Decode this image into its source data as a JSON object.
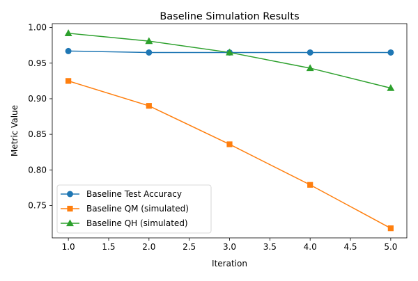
{
  "chart_data": {
    "type": "line",
    "title": "Baseline Simulation Results",
    "xlabel": "Iteration",
    "ylabel": "Metric Value",
    "xlim": [
      0.8,
      5.2
    ],
    "ylim": [
      0.7045,
      1.0055
    ],
    "xticks": [
      1.0,
      1.5,
      2.0,
      2.5,
      3.0,
      3.5,
      4.0,
      4.5,
      5.0
    ],
    "xtick_labels": [
      "1.0",
      "1.5",
      "2.0",
      "2.5",
      "3.0",
      "3.5",
      "4.0",
      "4.5",
      "5.0"
    ],
    "yticks": [
      0.75,
      0.8,
      0.85,
      0.9,
      0.95,
      1.0
    ],
    "ytick_labels": [
      "0.75",
      "0.80",
      "0.85",
      "0.90",
      "0.95",
      "1.00"
    ],
    "grid": false,
    "legend_position": "lower-left",
    "x": [
      1,
      2,
      3,
      4,
      5
    ],
    "series": [
      {
        "name": "Baseline Test Accuracy",
        "values": [
          0.967,
          0.965,
          0.965,
          0.965,
          0.965
        ],
        "color": "#1f77b4",
        "marker": "circle"
      },
      {
        "name": "Baseline QM (simulated)",
        "values": [
          0.925,
          0.89,
          0.836,
          0.779,
          0.718
        ],
        "color": "#ff7f0e",
        "marker": "square"
      },
      {
        "name": "Baseline QH (simulated)",
        "values": [
          0.992,
          0.981,
          0.965,
          0.943,
          0.915
        ],
        "color": "#2ca02c",
        "marker": "triangle"
      }
    ]
  }
}
